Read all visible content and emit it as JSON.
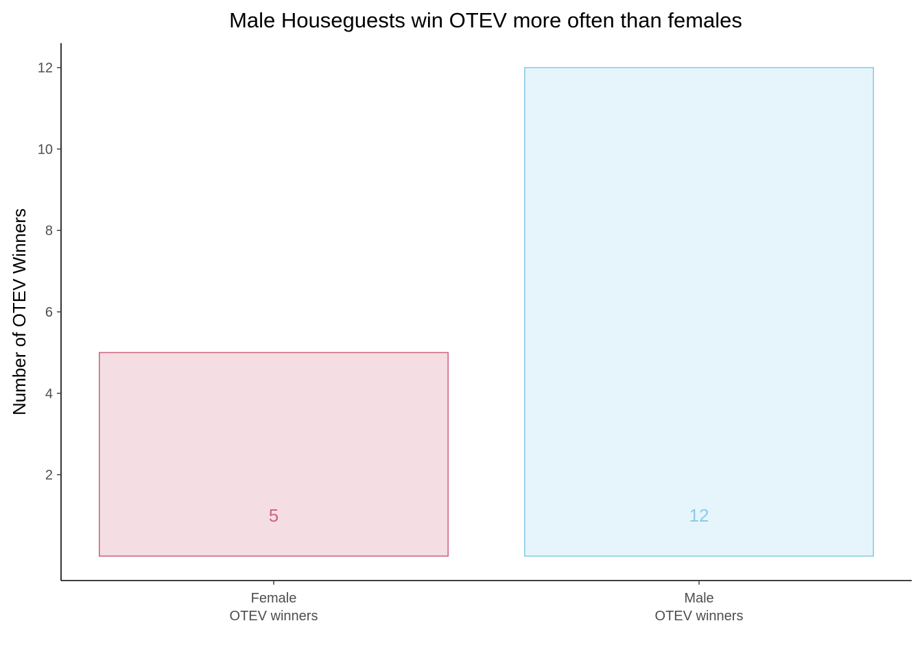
{
  "chart_data": {
    "type": "bar",
    "title": "Male Houseguests win OTEV more often than females",
    "xlabel": "",
    "ylabel": "Number of OTEV Winners",
    "categories": [
      [
        "Female",
        "OTEV winners"
      ],
      [
        "Male",
        "OTEV winners"
      ]
    ],
    "values": [
      5,
      12
    ],
    "data_labels": [
      "5",
      "12"
    ],
    "yticks": [
      2,
      4,
      6,
      8,
      10,
      12
    ],
    "ytick_labels": [
      "2",
      "4",
      "6",
      "8",
      "10",
      "12"
    ],
    "ylim": [
      -0.6,
      12.6
    ],
    "grid": false,
    "colors": {
      "fills": [
        "#f5dde4",
        "#e6f5fc"
      ],
      "strokes": [
        "#cc6680",
        "#88cce6"
      ],
      "labels": [
        "#cc6680",
        "#88cce6"
      ]
    }
  }
}
